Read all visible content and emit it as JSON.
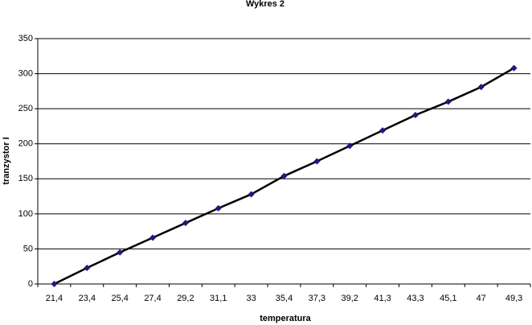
{
  "chart_data": {
    "type": "line",
    "title": "Wykres 2",
    "x_label": "temperatura",
    "y_label": "tranzystor I",
    "categories": [
      "21,4",
      "23,4",
      "25,4",
      "27,4",
      "29,2",
      "31,1",
      "33",
      "35,4",
      "37,3",
      "39,2",
      "41,3",
      "43,3",
      "45,1",
      "47",
      "49,3"
    ],
    "values": [
      0,
      23,
      45,
      66,
      87,
      108,
      128,
      154,
      175,
      197,
      219,
      241,
      260,
      281,
      308
    ],
    "color": "#000000",
    "marker_color": "#1a1a80",
    "ylim": [
      0,
      350
    ],
    "yticks": [
      0,
      50,
      100,
      150,
      200,
      250,
      300,
      350
    ],
    "grid": true
  }
}
